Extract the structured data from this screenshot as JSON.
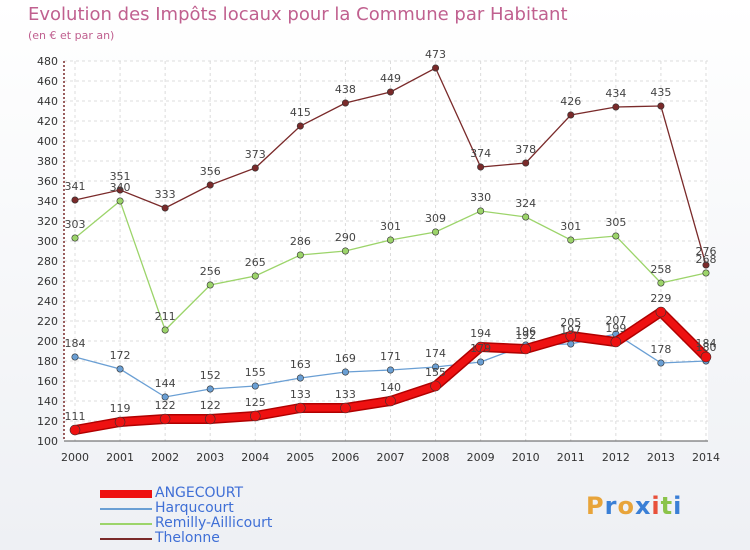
{
  "title": "Evolution des Impôts locaux pour la Commune par Habitant",
  "subtitle": "(en € et par an)",
  "logo": {
    "letters": [
      "P",
      "r",
      "o",
      "x",
      "i",
      "t",
      "i"
    ],
    "colors": [
      "#e8a43a",
      "#3a7fd6",
      "#e8a43a",
      "#3a7fd6",
      "#e8503a",
      "#8bc34a",
      "#3a7fd6"
    ]
  },
  "chart_data": {
    "type": "line",
    "title": "Evolution des Impôts locaux pour la Commune par Habitant",
    "ylabel": "",
    "xlabel": "",
    "x": [
      "2000",
      "2001",
      "2002",
      "2003",
      "2004",
      "2005",
      "2006",
      "2007",
      "2008",
      "2009",
      "2010",
      "2011",
      "2012",
      "2013",
      "2014"
    ],
    "ylim": [
      100,
      480
    ],
    "yticks": [
      100,
      120,
      140,
      160,
      180,
      200,
      220,
      240,
      260,
      280,
      300,
      320,
      340,
      360,
      380,
      400,
      420,
      440,
      460,
      480
    ],
    "grid": true,
    "legend_position": "bottom-left",
    "series": [
      {
        "name": "ANGECOURT",
        "color": "#ee1111",
        "values": [
          111,
          119,
          122,
          122,
          125,
          133,
          133,
          140,
          155,
          194,
          192,
          205,
          199,
          229,
          184
        ]
      },
      {
        "name": "Harqucourt",
        "color": "#6a9fd4",
        "values": [
          184,
          172,
          144,
          152,
          155,
          163,
          169,
          171,
          174,
          179,
          196,
          197,
          207,
          178,
          180
        ]
      },
      {
        "name": "Remilly-Aillicourt",
        "color": "#9cd46a",
        "values": [
          303,
          340,
          211,
          256,
          265,
          286,
          290,
          301,
          309,
          330,
          324,
          301,
          305,
          258,
          268
        ]
      },
      {
        "name": "Thelonne",
        "color": "#7a2a2a",
        "values": [
          341,
          351,
          333,
          356,
          373,
          415,
          438,
          449,
          473,
          374,
          378,
          426,
          434,
          435,
          276
        ]
      }
    ]
  }
}
